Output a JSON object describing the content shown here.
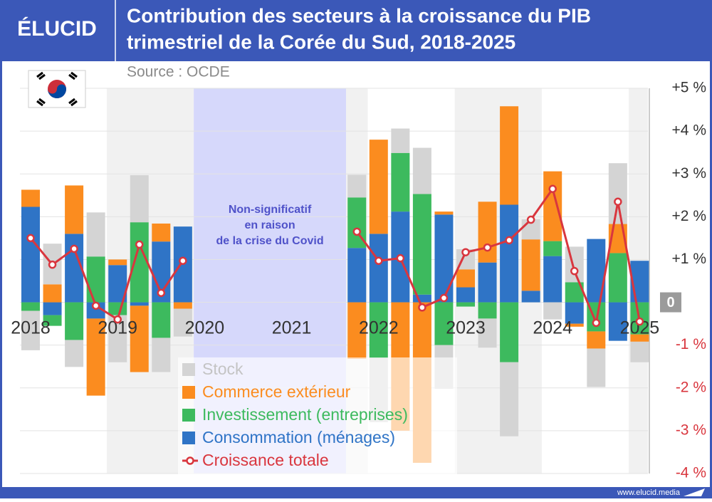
{
  "brand": "ÉLUCID",
  "footer": "www.elucid.media",
  "chart_data": {
    "type": "bar",
    "stacked": true,
    "title": [
      "Contribution des secteurs à la croissance du PIB",
      "trimestriel de la Corée du Sud, 2018-2025"
    ],
    "subtitle": "Source : OCDE",
    "annotation": [
      "Non-significatif",
      "en raison",
      "de la crise du Covid"
    ],
    "categories": [
      "2018",
      null,
      null,
      null,
      "2019",
      null,
      null,
      null,
      "2020",
      null,
      null,
      null,
      "2021",
      null,
      null,
      null,
      "2022",
      null,
      null,
      null,
      "2023",
      null,
      null,
      null,
      "2024",
      null,
      null,
      null,
      "2025"
    ],
    "series": [
      {
        "name": "Stock",
        "color": "#d4d4d4",
        "values": [
          -0.92,
          0.95,
          -0.63,
          1.03,
          -1.1,
          1.1,
          -0.8,
          -0.65,
          null,
          null,
          null,
          null,
          null,
          null,
          null,
          0.53,
          -1.5,
          0.57,
          1.08,
          -1.02,
          0.47,
          -0.68,
          -1.73,
          0.47,
          -0.4,
          0.83,
          -0.9,
          1.42,
          -0.48
        ]
      },
      {
        "name": "Commerce extérieur",
        "color": "#fb8c1f",
        "values": [
          0.4,
          0.42,
          1.13,
          -1.8,
          0.13,
          -1.55,
          0.42,
          -0.15,
          null,
          null,
          null,
          null,
          null,
          null,
          null,
          -1.32,
          2.2,
          -3.0,
          -3.75,
          0.07,
          0.42,
          1.42,
          2.3,
          1.2,
          1.63,
          -0.07,
          -0.4,
          0.68,
          -0.17
        ]
      },
      {
        "name": "Investissement (entreprises)",
        "color": "#3dba5e",
        "values": [
          -0.2,
          -0.25,
          -0.88,
          1.07,
          -0.3,
          1.87,
          -0.83,
          0,
          null,
          null,
          null,
          null,
          null,
          null,
          null,
          1.18,
          -1.3,
          1.37,
          2.35,
          -1.0,
          -0.1,
          -0.38,
          -1.4,
          0,
          0.35,
          0.47,
          -0.68,
          1.15,
          -0.75
        ]
      },
      {
        "name": "Consommation (ménages)",
        "color": "#2f74c6",
        "values": [
          2.23,
          -0.3,
          1.6,
          -0.38,
          0.87,
          -0.08,
          1.42,
          1.77,
          null,
          null,
          null,
          null,
          null,
          null,
          null,
          1.27,
          1.6,
          2.12,
          0.18,
          2.05,
          0.35,
          0.93,
          2.28,
          0.27,
          1.08,
          -0.5,
          1.48,
          -0.9,
          0.97
        ]
      },
      {
        "name": "Croissance totale",
        "color": "#d9363e",
        "type": "line",
        "values": [
          1.5,
          0.88,
          1.25,
          -0.08,
          -0.4,
          1.35,
          0.22,
          0.97,
          null,
          null,
          null,
          null,
          null,
          null,
          null,
          1.65,
          0.97,
          1.03,
          -0.12,
          0.1,
          1.17,
          1.28,
          1.45,
          1.93,
          2.65,
          0.73,
          -0.48,
          2.35,
          -0.45
        ]
      }
    ],
    "ylim": [
      -4,
      5
    ],
    "yticks": [
      {
        "value": 5,
        "label": "+5 %"
      },
      {
        "value": 4,
        "label": "+4 %"
      },
      {
        "value": 3,
        "label": "+3 %"
      },
      {
        "value": 2,
        "label": "+2 %"
      },
      {
        "value": 1,
        "label": "+1 %"
      },
      0,
      {
        "value": -1,
        "label": "-1 %"
      },
      {
        "value": -2,
        "label": "-2 %"
      },
      {
        "value": -3,
        "label": "-3 %"
      },
      {
        "value": -4,
        "label": "-4 %"
      }
    ],
    "grid": true
  }
}
